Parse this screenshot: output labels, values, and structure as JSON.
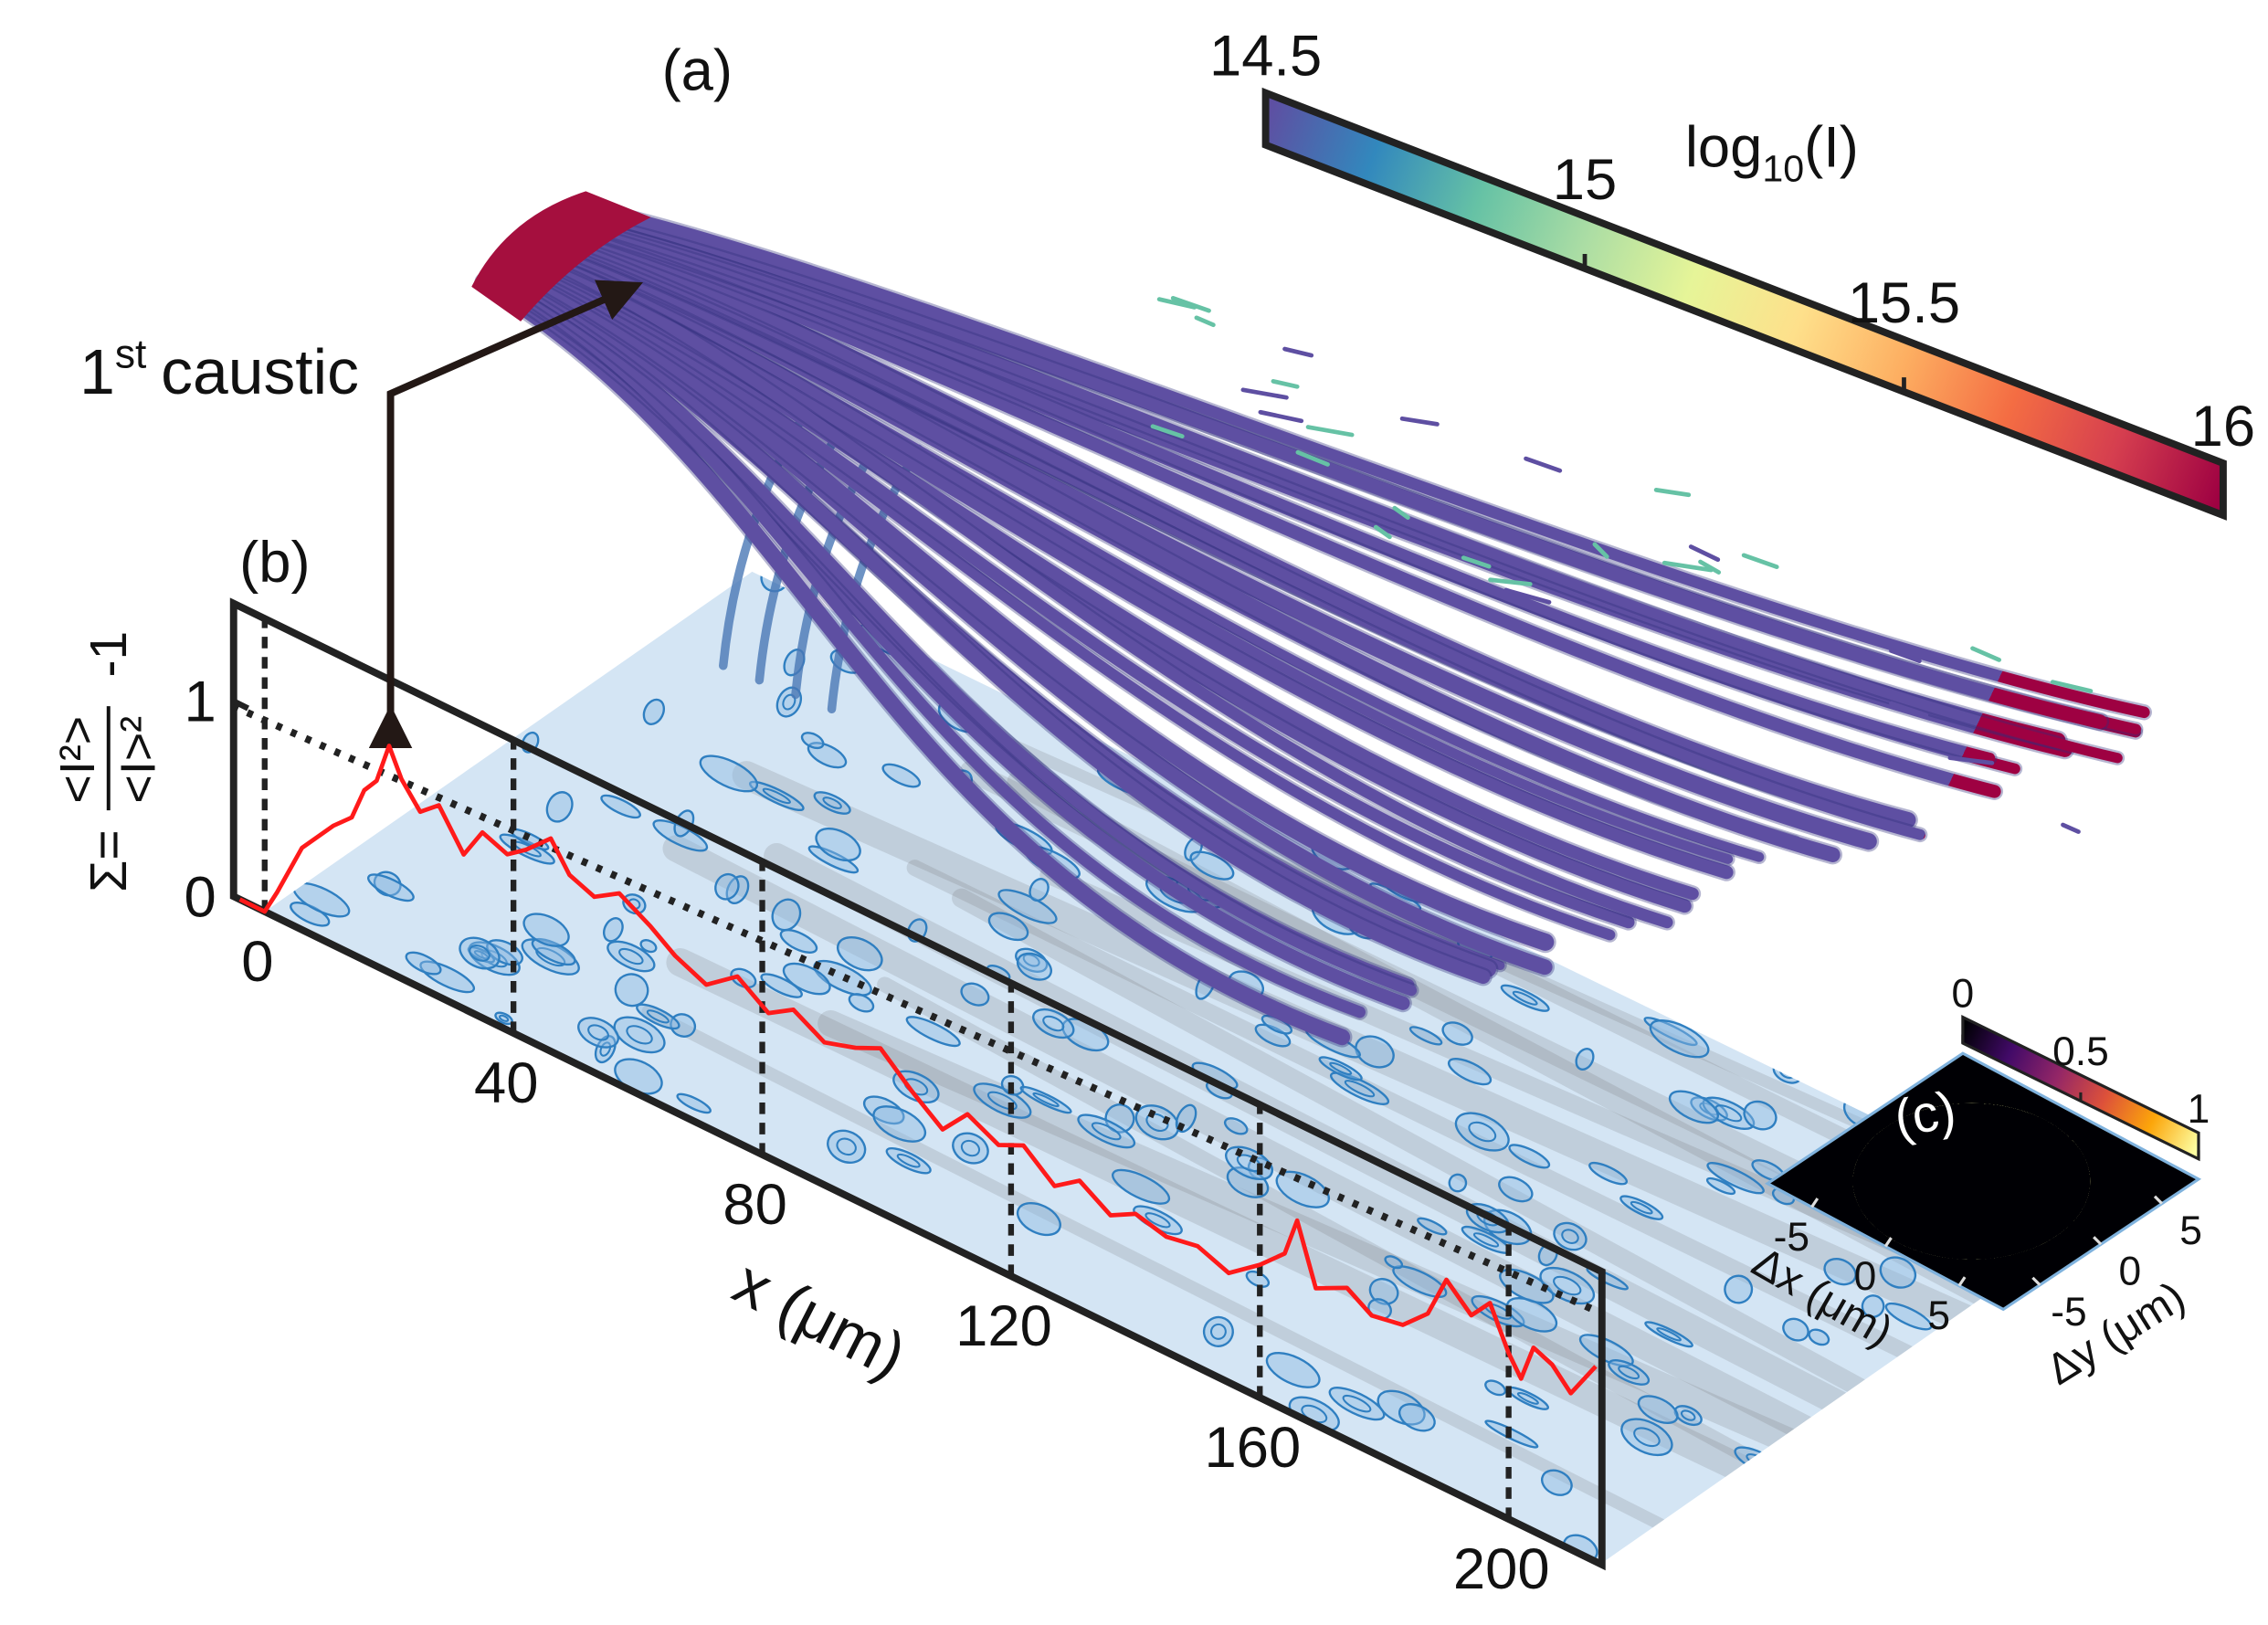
{
  "chart_data": [
    {
      "type": "line",
      "panel_label": "(b)",
      "xlabel": "x (μm)",
      "ylabel": {
        "lhs": "Σ=",
        "numerator": "<I²>",
        "denominator": "<I>²",
        "suffix": "-1"
      },
      "annotation": {
        "number": "1",
        "sup": "st",
        "text": "caustic"
      },
      "x": [
        -4,
        0,
        2,
        6,
        11,
        14,
        16,
        18,
        20,
        22,
        25,
        28,
        32,
        35,
        39,
        42,
        46,
        49,
        53,
        57,
        62,
        66,
        71,
        76,
        81,
        85,
        90,
        95,
        99,
        104,
        109,
        113,
        118,
        122,
        127,
        131,
        136,
        140,
        145,
        150,
        155,
        160,
        164,
        166,
        169,
        174,
        178,
        183,
        187,
        190,
        194,
        197,
        200,
        202,
        204,
        207,
        210,
        214
      ],
      "series": [
        {
          "color": "#ff1a1a",
          "values": [
            0,
            0,
            0.13,
            0.42,
            0.61,
            0.7,
            0.87,
            0.95,
            1.16,
            1.02,
            0.9,
            0.98,
            0.79,
            0.95,
            0.9,
            0.97,
            1.09,
            0.95,
            0.9,
            0.98,
            0.89,
            0.8,
            0.73,
            0.85,
            0.74,
            0.82,
            0.73,
            0.78,
            0.84,
            0.7,
            0.58,
            0.72,
            0.64,
            0.7,
            0.57,
            0.66,
            0.56,
            0.63,
            0.59,
            0.62,
            0.56,
            0.68,
            0.8,
            1.0,
            0.7,
            0.78,
            0.7,
            0.73,
            0.85,
            1.07,
            0.95,
            1.06,
            0.85,
            0.75,
            0.94,
            0.9,
            0.8,
            1.0
          ]
        }
      ],
      "xlim": [
        -5,
        215
      ],
      "xticks": [
        0,
        40,
        80,
        120,
        160,
        200
      ],
      "ylim": [
        0,
        1.5
      ],
      "yticks": [
        0,
        1
      ]
    },
    {
      "type": "colorbar",
      "panel_label": "(a)",
      "label": {
        "text": "log",
        "subscript": "10",
        "suffix": "(I)"
      },
      "clim": [
        14.5,
        16
      ],
      "ticks": [
        14.5,
        15,
        15.5,
        16
      ],
      "colormap": [
        "#5e4fa2",
        "#3288bd",
        "#66c2a5",
        "#abdda4",
        "#e6f598",
        "#fee08b",
        "#fdae61",
        "#f46d43",
        "#d53e4f",
        "#9e0142"
      ]
    },
    {
      "type": "heatmap",
      "panel_label": "(c)",
      "xlabel": "Δx (μm)",
      "ylabel": "Δy (μm)",
      "xlim": [
        -8,
        8
      ],
      "xticks": [
        -5,
        0,
        5
      ],
      "ylim": [
        -8,
        8
      ],
      "yticks": [
        5,
        0,
        -5
      ],
      "clim": [
        0,
        1
      ],
      "cticks": [
        0,
        0.5,
        1
      ],
      "colormap": [
        "#000004",
        "#420a68",
        "#932667",
        "#dd513a",
        "#fca50a",
        "#fcffa4"
      ]
    }
  ]
}
